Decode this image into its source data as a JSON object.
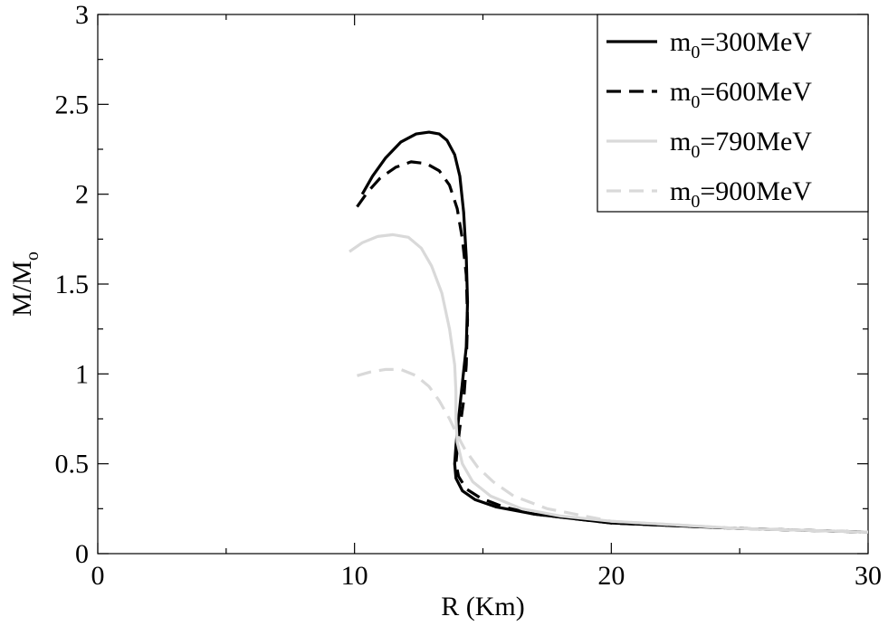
{
  "chart_data": {
    "type": "line",
    "title": "",
    "xlabel": "R (Km)",
    "ylabel": {
      "main": "M/M",
      "sub": "o"
    },
    "xlim": [
      0,
      30
    ],
    "ylim": [
      0,
      3
    ],
    "xticks": [
      "0",
      "10",
      "20",
      "30"
    ],
    "yticks": [
      "0",
      "0.5",
      "1",
      "1.5",
      "2",
      "2.5",
      "3"
    ],
    "grid": false,
    "legend_position": "top-right",
    "series": [
      {
        "name": {
          "pre": "m",
          "sub": "0",
          "post": "=300MeV"
        },
        "color": "#000000",
        "dash": "solid",
        "points": [
          [
            10.3,
            2.0
          ],
          [
            10.7,
            2.1
          ],
          [
            11.2,
            2.2
          ],
          [
            11.8,
            2.29
          ],
          [
            12.4,
            2.335
          ],
          [
            12.9,
            2.345
          ],
          [
            13.3,
            2.335
          ],
          [
            13.6,
            2.3
          ],
          [
            13.9,
            2.22
          ],
          [
            14.1,
            2.1
          ],
          [
            14.25,
            1.9
          ],
          [
            14.35,
            1.65
          ],
          [
            14.4,
            1.4
          ],
          [
            14.35,
            1.15
          ],
          [
            14.2,
            0.95
          ],
          [
            14.05,
            0.75
          ],
          [
            13.95,
            0.6
          ],
          [
            13.9,
            0.5
          ],
          [
            13.95,
            0.42
          ],
          [
            14.2,
            0.35
          ],
          [
            14.7,
            0.3
          ],
          [
            15.5,
            0.26
          ],
          [
            17,
            0.22
          ],
          [
            20,
            0.17
          ],
          [
            25,
            0.14
          ],
          [
            30,
            0.12
          ]
        ]
      },
      {
        "name": {
          "pre": "m",
          "sub": "0",
          "post": "=600MeV"
        },
        "color": "#000000",
        "dash": "dashed",
        "points": [
          [
            10.1,
            1.93
          ],
          [
            10.5,
            2.01
          ],
          [
            11.0,
            2.09
          ],
          [
            11.6,
            2.15
          ],
          [
            12.2,
            2.18
          ],
          [
            12.8,
            2.17
          ],
          [
            13.3,
            2.13
          ],
          [
            13.7,
            2.05
          ],
          [
            14.0,
            1.92
          ],
          [
            14.2,
            1.75
          ],
          [
            14.35,
            1.55
          ],
          [
            14.4,
            1.3
          ],
          [
            14.35,
            1.05
          ],
          [
            14.25,
            0.85
          ],
          [
            14.1,
            0.7
          ],
          [
            14.0,
            0.58
          ],
          [
            13.95,
            0.5
          ],
          [
            14.05,
            0.43
          ],
          [
            14.35,
            0.36
          ],
          [
            14.9,
            0.31
          ],
          [
            15.8,
            0.26
          ],
          [
            17,
            0.22
          ],
          [
            20,
            0.17
          ],
          [
            25,
            0.14
          ],
          [
            30,
            0.12
          ]
        ]
      },
      {
        "name": {
          "pre": "m",
          "sub": "0",
          "post": "=790MeV"
        },
        "color": "#d9d9d9",
        "dash": "solid",
        "points": [
          [
            9.8,
            1.68
          ],
          [
            10.3,
            1.73
          ],
          [
            10.9,
            1.765
          ],
          [
            11.5,
            1.775
          ],
          [
            12.1,
            1.76
          ],
          [
            12.6,
            1.7
          ],
          [
            13.0,
            1.6
          ],
          [
            13.4,
            1.45
          ],
          [
            13.7,
            1.25
          ],
          [
            13.9,
            1.05
          ],
          [
            13.95,
            0.9
          ],
          [
            13.95,
            0.75
          ],
          [
            14.0,
            0.62
          ],
          [
            14.2,
            0.5
          ],
          [
            14.6,
            0.4
          ],
          [
            15.3,
            0.32
          ],
          [
            16.5,
            0.25
          ],
          [
            18,
            0.21
          ],
          [
            20,
            0.18
          ],
          [
            25,
            0.14
          ],
          [
            30,
            0.12
          ]
        ]
      },
      {
        "name": {
          "pre": "m",
          "sub": "0",
          "post": "=900MeV"
        },
        "color": "#d9d9d9",
        "dash": "dashed",
        "points": [
          [
            10.1,
            0.99
          ],
          [
            10.6,
            1.01
          ],
          [
            11.2,
            1.025
          ],
          [
            11.8,
            1.025
          ],
          [
            12.4,
            0.99
          ],
          [
            12.9,
            0.93
          ],
          [
            13.3,
            0.85
          ],
          [
            13.7,
            0.75
          ],
          [
            14.0,
            0.66
          ],
          [
            14.3,
            0.58
          ],
          [
            14.8,
            0.48
          ],
          [
            15.4,
            0.4
          ],
          [
            16.2,
            0.32
          ],
          [
            17.5,
            0.25
          ],
          [
            20,
            0.18
          ],
          [
            25,
            0.14
          ],
          [
            30,
            0.12
          ]
        ]
      }
    ]
  }
}
